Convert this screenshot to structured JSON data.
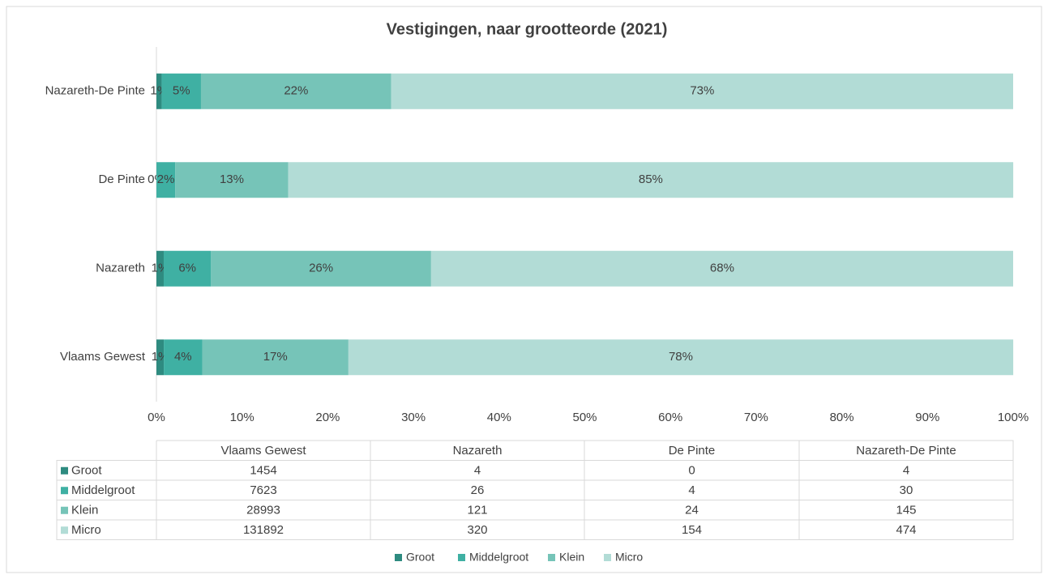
{
  "chart_data": {
    "type": "stacked_bar_horizontal",
    "title": "Vestigingen, naar grootteorde (2021)",
    "categories": [
      "Vlaams Gewest",
      "Nazareth",
      "De Pinte",
      "Nazareth-De Pinte"
    ],
    "series": [
      {
        "name": "Groot",
        "color": "#2e8b80",
        "values": [
          0.86,
          0.85,
          0,
          0.61
        ],
        "value_labels": [
          "1%",
          "1%",
          "0%",
          "1%"
        ]
      },
      {
        "name": "Middelgroot",
        "color": "#3fb0a3",
        "values": [
          4.49,
          5.52,
          2.2,
          4.59
        ],
        "value_labels": [
          "4%",
          "6%",
          "2%",
          "5%"
        ]
      },
      {
        "name": "Klein",
        "color": "#76c4b8",
        "values": [
          17.06,
          25.69,
          13.19,
          22.21
        ],
        "value_labels": [
          "17%",
          "26%",
          "13%",
          "22%"
        ]
      },
      {
        "name": "Micro",
        "color": "#b2dcd6",
        "values": [
          77.6,
          67.94,
          84.62,
          72.59
        ],
        "value_labels": [
          "78%",
          "68%",
          "85%",
          "73%"
        ]
      }
    ],
    "xlim": [
      0,
      100
    ],
    "xticks": [
      {
        "value": 0,
        "label": "0%"
      },
      {
        "value": 10,
        "label": "10%"
      },
      {
        "value": 20,
        "label": "20%"
      },
      {
        "value": 30,
        "label": "30%"
      },
      {
        "value": 40,
        "label": "40%"
      },
      {
        "value": 50,
        "label": "50%"
      },
      {
        "value": 60,
        "label": "60%"
      },
      {
        "value": 70,
        "label": "70%"
      },
      {
        "value": 80,
        "label": "80%"
      },
      {
        "value": 90,
        "label": "90%"
      },
      {
        "value": 100,
        "label": "100%"
      }
    ],
    "legend": "bottom",
    "table": {
      "rows": [
        [
          1454,
          4,
          0,
          4
        ],
        [
          7623,
          26,
          4,
          30
        ],
        [
          28993,
          121,
          24,
          145
        ],
        [
          131892,
          320,
          154,
          474
        ]
      ]
    }
  }
}
